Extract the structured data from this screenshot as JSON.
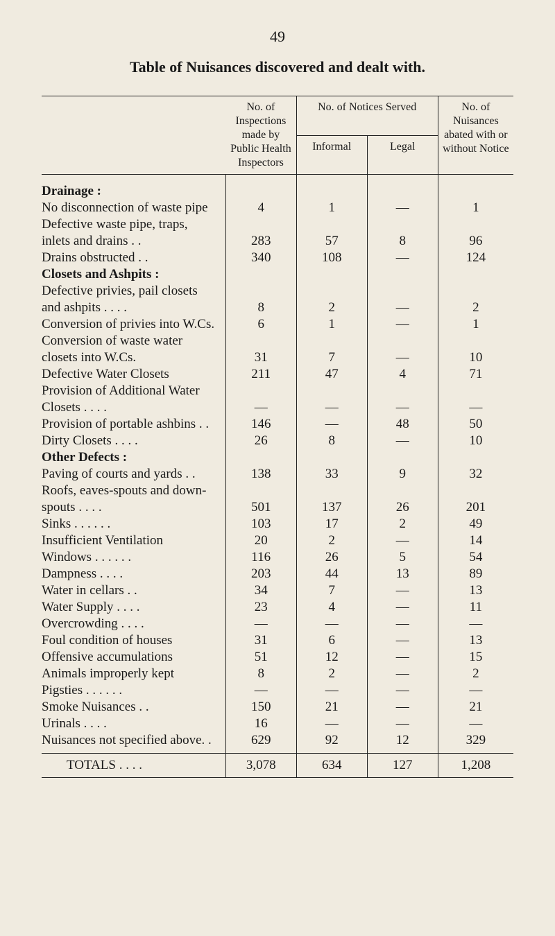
{
  "page_number": "49",
  "title": "Table of Nuisances discovered and dealt with.",
  "headers": {
    "inspections": "No. of Inspections made by Public Health Inspectors",
    "notices": "No. of Notices Served",
    "informal": "Informal",
    "legal": "Legal",
    "nuisances": "No. of Nuisances abated with or without Notice"
  },
  "sections": [
    {
      "heading": "Drainage :",
      "rows": [
        {
          "label": "No disconnection of waste pipe",
          "insp": "4",
          "inf": "1",
          "leg": "—",
          "nuis": "1"
        },
        {
          "label": "Defective waste pipe, traps,",
          "cont": true
        },
        {
          "label": "inlets and drains . .",
          "indent": true,
          "insp": "283",
          "inf": "57",
          "leg": "8",
          "nuis": "96"
        },
        {
          "label": "Drains obstructed       . .",
          "insp": "340",
          "inf": "108",
          "leg": "—",
          "nuis": "124"
        }
      ]
    },
    {
      "heading": "Closets and Ashpits :",
      "rows": [
        {
          "label": "Defective privies, pail closets",
          "cont": true
        },
        {
          "label": "and ashpits . .       . .",
          "indent": true,
          "insp": "8",
          "inf": "2",
          "leg": "—",
          "nuis": "2"
        },
        {
          "label": "Conversion of privies into W.Cs.",
          "insp": "6",
          "inf": "1",
          "leg": "—",
          "nuis": "1"
        },
        {
          "label": "Conversion of waste water",
          "cont": true
        },
        {
          "label": "closets into W.Cs.",
          "indent": true,
          "insp": "31",
          "inf": "7",
          "leg": "—",
          "nuis": "10"
        },
        {
          "label": "Defective Water Closets",
          "insp": "211",
          "inf": "47",
          "leg": "4",
          "nuis": "71"
        },
        {
          "label": "Provision of Additional Water",
          "cont": true
        },
        {
          "label": "Closets       . .       . .",
          "indent": true,
          "insp": "—",
          "inf": "—",
          "leg": "—",
          "nuis": "—"
        },
        {
          "label": "Provision of portable ashbins . .",
          "insp": "146",
          "inf": "—",
          "leg": "48",
          "nuis": "50"
        },
        {
          "label": "Dirty Closets   . .       . .",
          "insp": "26",
          "inf": "8",
          "leg": "—",
          "nuis": "10"
        }
      ]
    },
    {
      "heading": "Other Defects :",
      "rows": [
        {
          "label": "Paving of courts and yards  . .",
          "insp": "138",
          "inf": "33",
          "leg": "9",
          "nuis": "32"
        },
        {
          "label": "Roofs, eaves-spouts and down-",
          "cont": true
        },
        {
          "label": "spouts       . .       . .",
          "indent": true,
          "insp": "501",
          "inf": "137",
          "leg": "26",
          "nuis": "201"
        },
        {
          "label": "Sinks     . .       . .       . .",
          "insp": "103",
          "inf": "17",
          "leg": "2",
          "nuis": "49"
        },
        {
          "label": "Insufficient Ventilation",
          "insp": "20",
          "inf": "2",
          "leg": "—",
          "nuis": "14"
        },
        {
          "label": "Windows . .       . .       . .",
          "insp": "116",
          "inf": "26",
          "leg": "5",
          "nuis": "54"
        },
        {
          "label": "Dampness       . .       . .",
          "insp": "203",
          "inf": "44",
          "leg": "13",
          "nuis": "89"
        },
        {
          "label": "Water in cellars       . .",
          "insp": "34",
          "inf": "7",
          "leg": "—",
          "nuis": "13"
        },
        {
          "label": "Water Supply  . .       . .",
          "insp": "23",
          "inf": "4",
          "leg": "—",
          "nuis": "11"
        },
        {
          "label": "Overcrowding  . .       . .",
          "insp": "—",
          "inf": "—",
          "leg": "—",
          "nuis": "—"
        },
        {
          "label": "Foul condition of houses",
          "insp": "31",
          "inf": "6",
          "leg": "—",
          "nuis": "13"
        },
        {
          "label": "Offensive accumulations",
          "insp": "51",
          "inf": "12",
          "leg": "—",
          "nuis": "15"
        },
        {
          "label": "Animals improperly kept",
          "insp": "8",
          "inf": "2",
          "leg": "—",
          "nuis": "2"
        },
        {
          "label": "Pigsties . .       . .       . .",
          "insp": "—",
          "inf": "—",
          "leg": "—",
          "nuis": "—"
        },
        {
          "label": "Smoke Nuisances       . .",
          "insp": "150",
          "inf": "21",
          "leg": "—",
          "nuis": "21"
        },
        {
          "label": "Urinals         . .       . .",
          "insp": "16",
          "inf": "—",
          "leg": "—",
          "nuis": "—"
        },
        {
          "label": "Nuisances not specified above. .",
          "insp": "629",
          "inf": "92",
          "leg": "12",
          "nuis": "329"
        }
      ]
    }
  ],
  "totals": {
    "label": "TOTALS   . .       . .",
    "insp": "3,078",
    "inf": "634",
    "leg": "127",
    "nuis": "1,208"
  },
  "colors": {
    "bg": "#f0ebe0",
    "text": "#1a1a1a",
    "rule": "#222222"
  }
}
